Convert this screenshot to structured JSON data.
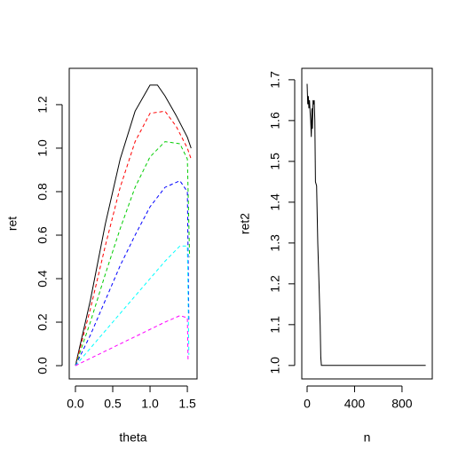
{
  "chart_data": [
    {
      "type": "line",
      "xlabel": "theta",
      "ylabel": "ret",
      "xlim": [
        -0.083,
        1.63
      ],
      "ylim": [
        -0.061,
        1.367
      ],
      "xticks": [
        {
          "value": 0,
          "label": "0.0"
        },
        {
          "value": 0.5,
          "label": "0.5"
        },
        {
          "value": 1,
          "label": "1.0"
        },
        {
          "value": 1.5,
          "label": "1.5"
        }
      ],
      "yticks": [
        {
          "value": 0,
          "label": "0.0"
        },
        {
          "value": 0.2,
          "label": "0.2"
        },
        {
          "value": 0.4,
          "label": "0.4"
        },
        {
          "value": 0.6,
          "label": "0.6"
        },
        {
          "value": 0.8,
          "label": "0.8"
        },
        {
          "value": 1,
          "label": "1.0"
        },
        {
          "value": 1.2,
          "label": "1.2"
        }
      ],
      "series": [
        {
          "color": "#000000",
          "line_style": "solid",
          "x": [
            0,
            0.2,
            0.4,
            0.6,
            0.8,
            1.0,
            1.1,
            1.2,
            1.35,
            1.5,
            1.55
          ],
          "values": [
            0,
            0.3,
            0.65,
            0.95,
            1.17,
            1.29,
            1.29,
            1.24,
            1.15,
            1.05,
            1.0
          ]
        },
        {
          "color": "#ff0000",
          "line_style": "dashed",
          "x": [
            0,
            0.2,
            0.4,
            0.6,
            0.8,
            1.0,
            1.2,
            1.35,
            1.5,
            1.55
          ],
          "values": [
            0,
            0.26,
            0.55,
            0.82,
            1.03,
            1.16,
            1.17,
            1.1,
            1.0,
            0.95
          ]
        },
        {
          "color": "#00cd00",
          "line_style": "dashed",
          "x": [
            0,
            0.2,
            0.4,
            0.6,
            0.8,
            1.0,
            1.2,
            1.4,
            1.5,
            1.53
          ],
          "values": [
            0,
            0.2,
            0.42,
            0.63,
            0.82,
            0.96,
            1.03,
            1.02,
            0.95,
            0.5
          ]
        },
        {
          "color": "#0000ff",
          "line_style": "dashed",
          "x": [
            0,
            0.2,
            0.4,
            0.6,
            0.8,
            1.0,
            1.2,
            1.4,
            1.5,
            1.52
          ],
          "values": [
            0,
            0.14,
            0.3,
            0.46,
            0.6,
            0.73,
            0.82,
            0.85,
            0.8,
            0.2
          ]
        },
        {
          "color": "#00ffff",
          "line_style": "dashed",
          "x": [
            0,
            0.3,
            0.6,
            0.9,
            1.2,
            1.4,
            1.5,
            1.52
          ],
          "values": [
            0,
            0.12,
            0.24,
            0.36,
            0.48,
            0.55,
            0.55,
            0.05
          ]
        },
        {
          "color": "#ff00ff",
          "line_style": "dashed",
          "x": [
            0,
            0.3,
            0.6,
            0.9,
            1.2,
            1.4,
            1.5,
            1.51
          ],
          "values": [
            0,
            0.05,
            0.1,
            0.15,
            0.2,
            0.23,
            0.22,
            0.02
          ]
        }
      ]
    },
    {
      "type": "line",
      "xlabel": "n",
      "ylabel": "ret2",
      "xlim": [
        -45,
        1055
      ],
      "ylim": [
        0.967,
        1.728
      ],
      "xticks": [
        0,
        400,
        800
      ],
      "yticks": [
        {
          "value": 1,
          "label": "1.0"
        },
        1.1,
        1.2,
        1.3,
        1.4,
        1.5,
        1.6,
        1.7
      ],
      "series": [
        {
          "color": "#000000",
          "line_style": "solid",
          "x": [
            0,
            5,
            10,
            15,
            20,
            25,
            30,
            35,
            40,
            45,
            50,
            55,
            60,
            65,
            70,
            80,
            90,
            100,
            110,
            115,
            120,
            1000
          ],
          "values": [
            1.69,
            1.64,
            1.66,
            1.63,
            1.65,
            1.62,
            1.6,
            1.56,
            1.63,
            1.58,
            1.65,
            1.64,
            1.65,
            1.6,
            1.45,
            1.44,
            1.3,
            1.2,
            1.1,
            1.02,
            1.0,
            1.0
          ]
        }
      ]
    }
  ]
}
